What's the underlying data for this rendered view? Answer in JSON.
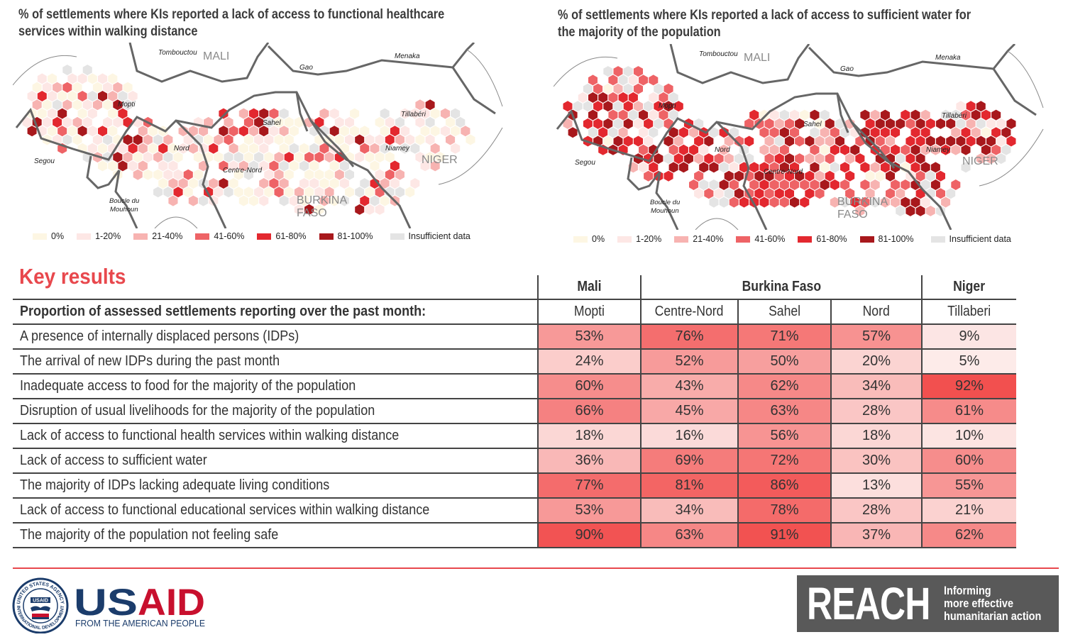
{
  "maps": [
    {
      "title_lines": [
        "% of settlements where KIs reported a lack of access to functional healthcare",
        "services within walking distance"
      ],
      "labels": {
        "mali": "MALI",
        "niger": "NIGER",
        "burkina1": "BURKINA",
        "burkina2": "FASO",
        "tombouctou": "Tombouctou",
        "gao": "Gao",
        "menaka": "Menaka",
        "mopti": "Mopti",
        "sahel": "Sahel",
        "tillaberi": "Tillabéri",
        "nord": "Nord",
        "niamey": "Niamey",
        "segou": "Segou",
        "centre_nord": "Centre-Nord",
        "boucle1": "Boucle du",
        "boucle2": "Mouhoun"
      },
      "dist": [
        0.3,
        0.22,
        0.14,
        0.07,
        0.06,
        0.06,
        0.15
      ]
    },
    {
      "title_lines": [
        "% of settlements where KIs reported a lack of access to sufficient water for",
        "the majority of the population"
      ],
      "labels": {
        "mali": "MALI",
        "niger": "NIGER",
        "burkina1": "BURKINA",
        "burkina2": "FASO",
        "tombouctou": "Tombouctou",
        "gao": "Gao",
        "menaka": "Menaka",
        "mopti": "Mopti",
        "sahel": "Sahel",
        "tillaberi": "Tillabéri",
        "nord": "Nord",
        "niamey": "Niamey",
        "segou": "Segou",
        "centre_nord": "Centre-Nord",
        "boucle1": "Boucle du",
        "boucle2": "Mouhoun"
      },
      "dist": [
        0.06,
        0.08,
        0.12,
        0.15,
        0.18,
        0.16,
        0.25
      ]
    }
  ],
  "legend": [
    {
      "label": "0%",
      "color": "#fdf6e3"
    },
    {
      "label": "1-20%",
      "color": "#fde7e5"
    },
    {
      "label": "21-40%",
      "color": "#f7b3b1"
    },
    {
      "label": "41-60%",
      "color": "#ee6366"
    },
    {
      "label": "61-80%",
      "color": "#e3282f"
    },
    {
      "label": "81-100%",
      "color": "#a8181c"
    },
    {
      "label": "Insufficient data",
      "color": "#e4e4e4"
    }
  ],
  "key_results": {
    "title": "Key results",
    "header_label": "Proportion of assessed settlements reporting over the past month:",
    "countries": [
      {
        "name": "Mali",
        "span": 1
      },
      {
        "name": "Burkina Faso",
        "span": 3
      },
      {
        "name": "Niger",
        "span": 1
      }
    ],
    "regions": [
      "Mopti",
      "Centre-Nord",
      "Sahel",
      "Nord",
      "Tillaberi"
    ],
    "rows": [
      {
        "label": "A presence of internally displaced persons (IDPs)",
        "values": [
          53,
          76,
          71,
          57,
          9
        ]
      },
      {
        "label": "The arrival of new IDPs during the past month",
        "values": [
          24,
          52,
          50,
          20,
          5
        ]
      },
      {
        "label": "Inadequate access to food for the majority of the population",
        "values": [
          60,
          43,
          62,
          34,
          92
        ]
      },
      {
        "label": "Disruption of usual livelihoods for the majority of the population",
        "values": [
          66,
          45,
          63,
          28,
          61
        ]
      },
      {
        "label": "Lack of access to functional health services within walking distance",
        "values": [
          18,
          16,
          56,
          18,
          10
        ]
      },
      {
        "label": "Lack of access to sufficient water",
        "values": [
          36,
          69,
          72,
          30,
          60
        ]
      },
      {
        "label": "The majority of IDPs lacking adequate living conditions",
        "values": [
          77,
          81,
          86,
          13,
          55
        ]
      },
      {
        "label": "Lack of access to functional educational services within walking distance",
        "values": [
          53,
          34,
          78,
          28,
          21
        ]
      },
      {
        "label": "The majority of the population not feeling safe",
        "values": [
          90,
          63,
          91,
          37,
          62
        ]
      }
    ]
  },
  "logos": {
    "usaid_text": "USAID",
    "usaid_sub": "FROM THE AMERICAN PEOPLE",
    "seal_top": "UNITED STATES AGENCY",
    "seal_bottom": "INTERNATIONAL DEVELOPMENT",
    "seal_center": "USAID",
    "reach_text": "REACH",
    "reach_tag": [
      "Informing",
      "more effective",
      "humanitarian action"
    ]
  }
}
